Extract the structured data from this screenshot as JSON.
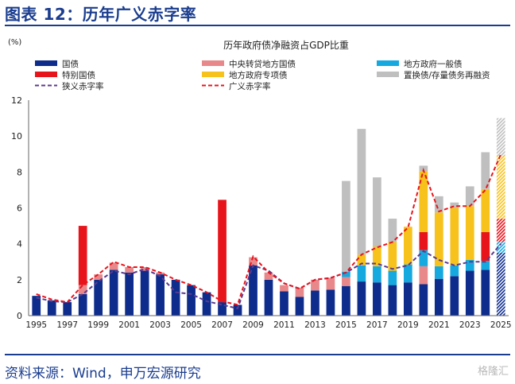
{
  "figure": {
    "title": "图表 12：历年广义赤字率",
    "source": "资料来源：Wind，申万宏源研究",
    "watermark": "格隆汇"
  },
  "chart_data": {
    "type": "bar",
    "title": "历年政府债净融资占GDP比重",
    "ylabel": "(%)",
    "ylim": [
      0,
      12
    ],
    "yticks": [
      0,
      2,
      4,
      6,
      8,
      10,
      12
    ],
    "x_tick_labels": [
      "1995",
      "1997",
      "1999",
      "2001",
      "2003",
      "2005",
      "2007",
      "2009",
      "2011",
      "2013",
      "2015",
      "2017",
      "2019",
      "2021",
      "2023",
      "2025"
    ],
    "categories": [
      "1995",
      "1996",
      "1997",
      "1998",
      "1999",
      "2000",
      "2001",
      "2002",
      "2003",
      "2004",
      "2005",
      "2006",
      "2007",
      "2008",
      "2009",
      "2010",
      "2011",
      "2012",
      "2013",
      "2014",
      "2015",
      "2016",
      "2017",
      "2018",
      "2019",
      "2020",
      "2021",
      "2022",
      "2023",
      "2024",
      "2025"
    ],
    "series": [
      {
        "name": "国债",
        "kind": "bar",
        "color": "#0d2c8c",
        "values": [
          1.1,
          0.85,
          0.75,
          1.2,
          2.0,
          2.55,
          2.4,
          2.5,
          2.3,
          2.0,
          1.7,
          1.3,
          0.75,
          0.6,
          2.8,
          2.0,
          1.35,
          1.05,
          1.4,
          1.45,
          1.65,
          1.9,
          1.85,
          1.7,
          1.85,
          1.75,
          2.05,
          2.2,
          2.5,
          2.55,
          3.5
        ]
      },
      {
        "name": "中央转贷地方国债",
        "kind": "bar",
        "color": "#e8888a",
        "values": [
          0,
          0,
          0,
          0.5,
          0.3,
          0.4,
          0.3,
          0.2,
          0.1,
          0,
          0,
          0,
          0,
          0,
          0.45,
          0.4,
          0.35,
          0.5,
          0.6,
          0.65,
          0.5,
          0,
          0,
          0,
          0,
          1.0,
          0,
          0,
          0,
          0,
          0
        ]
      },
      {
        "name": "地方政府一般债",
        "kind": "bar",
        "color": "#16a9e0",
        "values": [
          0,
          0,
          0,
          0,
          0,
          0,
          0,
          0,
          0,
          0,
          0,
          0,
          0,
          0,
          0,
          0,
          0,
          0,
          0,
          0,
          0.3,
          0.9,
          0.9,
          0.8,
          1.0,
          0.9,
          0.7,
          0.6,
          0.6,
          0.5,
          0.6
        ]
      },
      {
        "name": "特别国债",
        "kind": "bar",
        "color": "#e8141c",
        "values": [
          0,
          0,
          0,
          3.3,
          0,
          0,
          0,
          0,
          0,
          0,
          0,
          0,
          5.7,
          0,
          0,
          0,
          0,
          0,
          0,
          0,
          0,
          0,
          0,
          0,
          0,
          1.0,
          0,
          0,
          0,
          1.6,
          1.3
        ]
      },
      {
        "name": "地方政府专项债",
        "kind": "bar",
        "color": "#f7c21b",
        "values": [
          0,
          0,
          0,
          0,
          0,
          0,
          0,
          0,
          0,
          0,
          0,
          0,
          0,
          0,
          0,
          0,
          0,
          0,
          0,
          0,
          0,
          0.6,
          1.1,
          1.6,
          2.1,
          3.4,
          3.0,
          3.2,
          3.0,
          2.4,
          3.5
        ]
      },
      {
        "name": "置换债/存量债务再融资",
        "kind": "bar",
        "color": "#bfbfbf",
        "values": [
          0,
          0,
          0,
          0,
          0,
          0,
          0,
          0,
          0,
          0,
          0,
          0,
          0,
          0,
          0,
          0,
          0,
          0,
          0,
          0,
          5.05,
          7.0,
          3.85,
          1.3,
          0,
          0.3,
          0.9,
          0.3,
          1.1,
          2.05,
          2.1
        ]
      },
      {
        "name": "狭义赤字率",
        "kind": "line",
        "color": "#5b3a8e",
        "values": [
          1.0,
          0.8,
          0.75,
          1.2,
          1.9,
          2.5,
          2.3,
          2.6,
          2.2,
          1.3,
          1.2,
          0.8,
          0.6,
          0.4,
          2.8,
          2.5,
          1.8,
          1.5,
          2.0,
          2.1,
          2.4,
          2.9,
          2.9,
          2.6,
          2.8,
          3.6,
          3.1,
          2.8,
          3.0,
          3.0,
          4.0
        ]
      },
      {
        "name": "广义赤字率",
        "kind": "line",
        "color": "#e8141c",
        "values": [
          1.2,
          0.9,
          0.75,
          1.7,
          2.3,
          3.0,
          2.7,
          2.7,
          2.4,
          2.0,
          1.7,
          1.3,
          0.8,
          0.6,
          3.3,
          2.4,
          1.8,
          1.5,
          2.0,
          2.1,
          2.4,
          3.4,
          3.8,
          4.1,
          4.9,
          8.1,
          5.8,
          6.1,
          6.1,
          7.0,
          9.0
        ]
      }
    ],
    "forecast_category": "2025",
    "legend": {
      "placement": "top",
      "columns": 3
    },
    "grid": false
  }
}
